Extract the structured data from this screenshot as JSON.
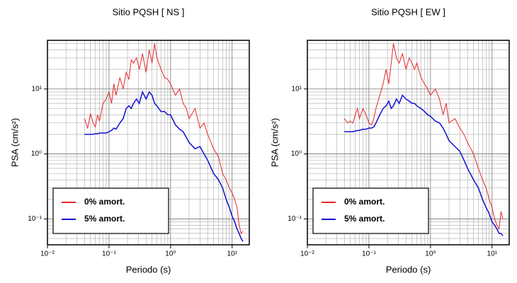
{
  "chart_data": [
    {
      "type": "line",
      "title": "Sitio PQSH [ NS ]",
      "x_label": "Periodo (s)",
      "y_label": "PSA (cm/s²)",
      "log_x": true,
      "log_y": true,
      "grid": true,
      "legend": "lower left",
      "xlim": [
        0.01,
        19
      ],
      "ylim": [
        0.04,
        56
      ],
      "xticks": [
        {
          "value": 0.01,
          "label": "10⁻²"
        },
        {
          "value": 0.1,
          "label": "10⁻¹"
        },
        {
          "value": 1,
          "label": "10⁰"
        },
        {
          "value": 10,
          "label": "10¹"
        }
      ],
      "yticks": [
        {
          "value": 0.1,
          "label": "10⁻¹"
        },
        {
          "value": 1,
          "label": "10⁰"
        },
        {
          "value": 10,
          "label": "10¹"
        }
      ],
      "x": [
        0.04,
        0.045,
        0.05,
        0.055,
        0.06,
        0.065,
        0.07,
        0.08,
        0.09,
        0.1,
        0.11,
        0.12,
        0.13,
        0.15,
        0.17,
        0.19,
        0.21,
        0.23,
        0.25,
        0.28,
        0.31,
        0.35,
        0.4,
        0.45,
        0.5,
        0.55,
        0.6,
        0.7,
        0.8,
        0.9,
        1.0,
        1.2,
        1.4,
        1.6,
        1.8,
        2.0,
        2.5,
        3.0,
        3.5,
        4.0,
        5.0,
        6.0,
        7.0,
        8.0,
        9.0,
        10,
        11,
        12,
        13,
        14,
        15
      ],
      "series": [
        {
          "name": "0% amort.",
          "color": "#e8262a",
          "width": 1,
          "values": [
            3.5,
            2.5,
            4.2,
            3,
            2.6,
            4,
            3.2,
            6,
            7,
            9,
            6,
            12,
            8,
            15,
            10,
            18,
            14,
            28,
            25,
            30,
            20,
            35,
            18,
            40,
            25,
            50,
            30,
            20,
            15,
            14,
            12,
            8,
            10,
            6,
            5,
            3.5,
            5,
            2.5,
            3,
            2,
            1.2,
            0.9,
            0.5,
            0.4,
            0.3,
            0.25,
            0.2,
            0.15,
            0.08,
            0.06,
            0.065
          ]
        },
        {
          "name": "5% amort.",
          "color": "#1010d0",
          "width": 1.5,
          "values": [
            2,
            2,
            2,
            2,
            2.05,
            2.05,
            2.1,
            2.1,
            2.1,
            2.2,
            2.3,
            2.5,
            2.4,
            3,
            3.5,
            5,
            5.5,
            5,
            6,
            7,
            6,
            9,
            7,
            9,
            8,
            6,
            5.5,
            4.5,
            4.5,
            4,
            4,
            2.8,
            2.4,
            2.2,
            1.8,
            1.5,
            1.2,
            1.3,
            1,
            0.8,
            0.5,
            0.4,
            0.3,
            0.2,
            0.15,
            0.11,
            0.09,
            0.07,
            0.06,
            0.05,
            0.045
          ]
        }
      ]
    },
    {
      "type": "line",
      "title": "Sitio PQSH [ EW ]",
      "x_label": "Periodo (s)",
      "y_label": "PSA (cm/s²)",
      "log_x": true,
      "log_y": true,
      "grid": true,
      "legend": "lower left",
      "xlim": [
        0.01,
        19
      ],
      "ylim": [
        0.04,
        56
      ],
      "xticks": [
        {
          "value": 0.01,
          "label": "10⁻²"
        },
        {
          "value": 0.1,
          "label": "10⁻¹"
        },
        {
          "value": 1,
          "label": "10⁰"
        },
        {
          "value": 10,
          "label": "10¹"
        }
      ],
      "yticks": [
        {
          "value": 0.1,
          "label": "10⁻¹"
        },
        {
          "value": 1,
          "label": "10⁰"
        },
        {
          "value": 10,
          "label": "10¹"
        }
      ],
      "x": [
        0.04,
        0.045,
        0.05,
        0.055,
        0.06,
        0.065,
        0.07,
        0.08,
        0.09,
        0.1,
        0.11,
        0.12,
        0.13,
        0.15,
        0.17,
        0.19,
        0.21,
        0.23,
        0.25,
        0.28,
        0.31,
        0.35,
        0.4,
        0.45,
        0.5,
        0.55,
        0.6,
        0.7,
        0.8,
        0.9,
        1.0,
        1.2,
        1.4,
        1.6,
        1.8,
        2.0,
        2.5,
        3.0,
        3.5,
        4.0,
        5.0,
        6.0,
        7.0,
        8.0,
        9.0,
        10,
        11,
        12,
        13,
        14,
        15
      ],
      "series": [
        {
          "name": "0% amort.",
          "color": "#e8262a",
          "width": 1,
          "values": [
            3.5,
            3,
            3.2,
            3,
            4,
            5,
            3.5,
            5,
            4,
            3,
            2.8,
            3.5,
            5,
            8,
            12,
            20,
            12,
            25,
            50,
            30,
            25,
            35,
            20,
            30,
            25,
            20,
            25,
            15,
            12,
            10,
            8,
            10,
            7,
            4,
            6,
            3,
            3.5,
            2.5,
            2,
            1.5,
            1,
            0.6,
            0.4,
            0.3,
            0.2,
            0.15,
            0.1,
            0.08,
            0.07,
            0.13,
            0.1
          ]
        },
        {
          "name": "5% amort.",
          "color": "#1010d0",
          "width": 1.5,
          "values": [
            2.2,
            2.2,
            2.2,
            2.2,
            2.25,
            2.3,
            2.3,
            2.4,
            2.4,
            2.5,
            2.5,
            2.6,
            3,
            4,
            5,
            5.5,
            6.5,
            5,
            5.5,
            7,
            6,
            8,
            7,
            6.5,
            6,
            6,
            5.5,
            5,
            4.5,
            4,
            3.8,
            3.2,
            3,
            2.5,
            2,
            1.6,
            1.3,
            1.1,
            0.8,
            0.6,
            0.4,
            0.3,
            0.2,
            0.15,
            0.12,
            0.09,
            0.08,
            0.07,
            0.06,
            0.06,
            0.055
          ]
        }
      ]
    }
  ]
}
